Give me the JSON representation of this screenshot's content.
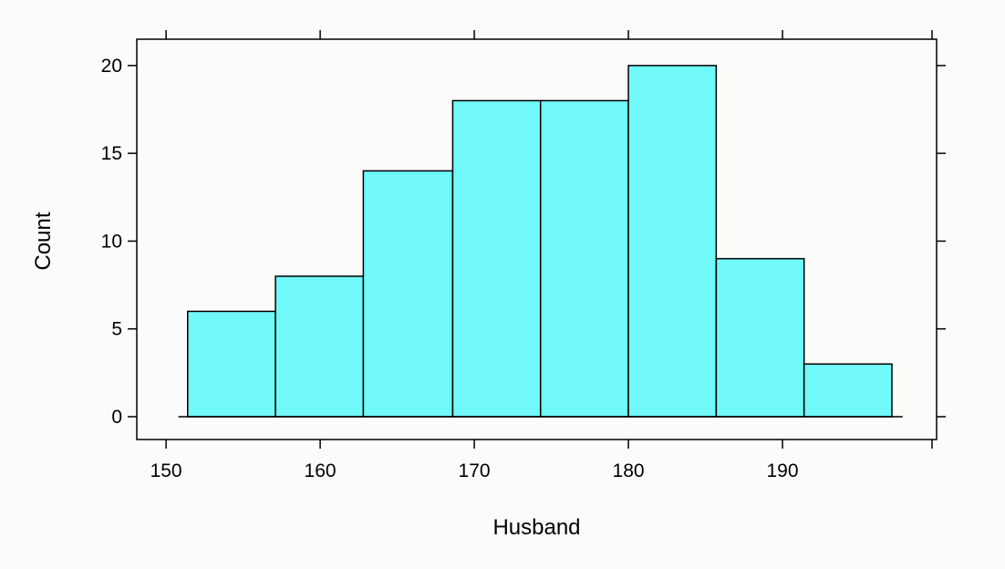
{
  "chart_data": {
    "type": "bar",
    "subtype": "histogram",
    "xlabel": "Husband",
    "ylabel": "Count",
    "bins": [
      {
        "start": 151.4,
        "end": 157.1,
        "count": 6
      },
      {
        "start": 157.1,
        "end": 162.8,
        "count": 8
      },
      {
        "start": 162.8,
        "end": 168.6,
        "count": 14
      },
      {
        "start": 168.6,
        "end": 174.3,
        "count": 18
      },
      {
        "start": 174.3,
        "end": 180.0,
        "count": 18
      },
      {
        "start": 180.0,
        "end": 185.7,
        "count": 20
      },
      {
        "start": 185.7,
        "end": 191.4,
        "count": 9
      },
      {
        "start": 191.4,
        "end": 197.1,
        "count": 3
      }
    ],
    "xlim": [
      148.1,
      200.0
    ],
    "ylim": [
      -1.3,
      21.5
    ],
    "xticks": [
      150,
      160,
      170,
      180,
      190
    ],
    "xtick_labels": [
      "150",
      "160",
      "170",
      "180",
      "190"
    ],
    "yticks": [
      0,
      5,
      10,
      15,
      20
    ],
    "ytick_labels": [
      "0",
      "5",
      "10",
      "15",
      "20"
    ],
    "baseline": {
      "from": 150.8,
      "to": 197.8
    },
    "bar_color": "#71f8f8",
    "edge_color": "#000000",
    "background_color": "#fbfcfa",
    "grid": false,
    "legend": "none"
  }
}
